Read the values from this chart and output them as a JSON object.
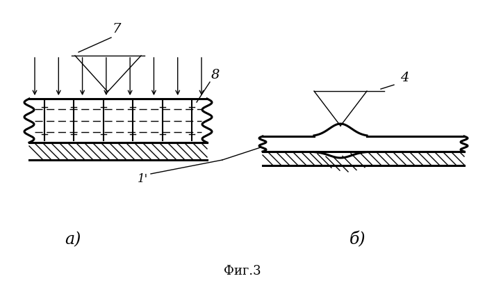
{
  "bg_color": "#ffffff",
  "title": "Фиг.3",
  "label_a": "а)",
  "label_b": "б)",
  "label_1": "1'",
  "label_4": "4",
  "label_7": "7",
  "label_8": "8"
}
